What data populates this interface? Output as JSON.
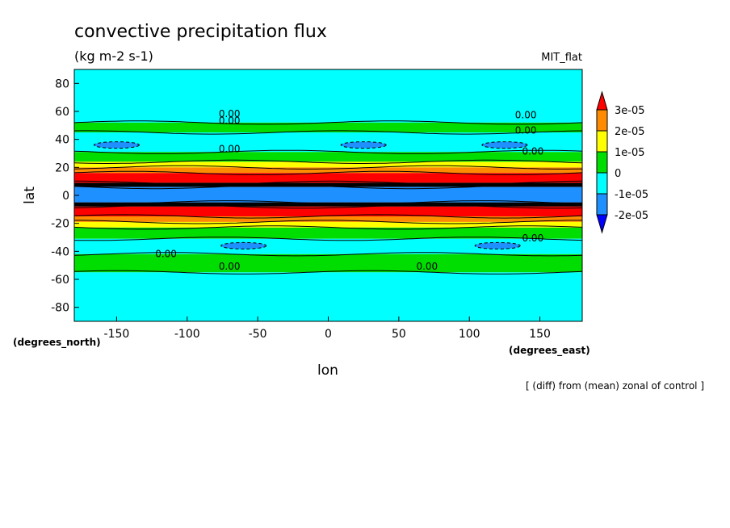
{
  "chart_data": {
    "type": "heatmap",
    "title": "convective precipitation flux",
    "subtitle": "(kg m-2 s-1)",
    "model_label": "MIT_flat",
    "xlabel": "lon",
    "ylabel": "lat",
    "x_unit_label": "(degrees_east)",
    "y_unit_label": "(degrees_north)",
    "footnote": "[ (diff) from (mean) zonal of control ]",
    "xlim": [
      -180,
      180
    ],
    "ylim": [
      -90,
      90
    ],
    "x_ticks": [
      -150,
      -100,
      -50,
      0,
      50,
      100,
      150
    ],
    "x_tick_labels": [
      "-150",
      "-100",
      "-50",
      "0",
      "50",
      "100",
      "150"
    ],
    "y_ticks": [
      80,
      60,
      40,
      20,
      0,
      -20,
      -40,
      -60,
      -80
    ],
    "y_tick_labels": [
      "80",
      "60",
      "40",
      "20",
      "0",
      "-20",
      "-40",
      "-60",
      "-80"
    ],
    "colorbar": {
      "labels": [
        "3e-05",
        "2e-05",
        "1e-05",
        "0",
        "-1e-05",
        "-2e-05"
      ],
      "colors": [
        "#ff0000",
        "#ff8c00",
        "#ffff00",
        "#00dd00",
        "#00ffff",
        "#1e90ff",
        "#0000ff"
      ],
      "extend": "both"
    },
    "bands": [
      {
        "lat_top": 90,
        "lat_bottom": 52,
        "value_color": "#00ffff"
      },
      {
        "lat_top": 52,
        "lat_bottom": 45,
        "value_color": "#00dd00"
      },
      {
        "lat_top": 45,
        "lat_bottom": 31,
        "value_color": "#00ffff"
      },
      {
        "lat_top": 31,
        "lat_bottom": 24,
        "value_color": "#00dd00"
      },
      {
        "lat_top": 24,
        "lat_bottom": 20,
        "value_color": "#ffff00"
      },
      {
        "lat_top": 20,
        "lat_bottom": 16,
        "value_color": "#ff8c00"
      },
      {
        "lat_top": 16,
        "lat_bottom": 9,
        "value_color": "#ff0000"
      },
      {
        "lat_top": 9,
        "lat_bottom": 6,
        "value_color": "#000000"
      },
      {
        "lat_top": 6,
        "lat_bottom": -5,
        "value_color": "#1e90ff"
      },
      {
        "lat_top": -5,
        "lat_bottom": -8,
        "value_color": "#000000"
      },
      {
        "lat_top": -8,
        "lat_bottom": -15,
        "value_color": "#ff0000"
      },
      {
        "lat_top": -15,
        "lat_bottom": -19,
        "value_color": "#ff8c00"
      },
      {
        "lat_top": -19,
        "lat_bottom": -23,
        "value_color": "#ffff00"
      },
      {
        "lat_top": -23,
        "lat_bottom": -31,
        "value_color": "#00dd00"
      },
      {
        "lat_top": -31,
        "lat_bottom": -42,
        "value_color": "#00ffff"
      },
      {
        "lat_top": -42,
        "lat_bottom": -55,
        "value_color": "#00dd00"
      },
      {
        "lat_top": -55,
        "lat_bottom": -90,
        "value_color": "#00ffff"
      }
    ],
    "negative_pockets": [
      {
        "lon": -150,
        "lat": 36
      },
      {
        "lon": 25,
        "lat": 36
      },
      {
        "lon": 125,
        "lat": 36
      },
      {
        "lon": -60,
        "lat": -36
      },
      {
        "lon": 120,
        "lat": -36
      }
    ],
    "contour_labels": [
      {
        "text": "0.00",
        "lon": -70,
        "lat": 56
      },
      {
        "text": "0.00",
        "lon": -70,
        "lat": 51
      },
      {
        "text": "0.00",
        "lon": 140,
        "lat": 55
      },
      {
        "text": "0.00",
        "lon": 140,
        "lat": 44
      },
      {
        "text": "0.00",
        "lon": -70,
        "lat": 31
      },
      {
        "text": "0.00",
        "lon": 145,
        "lat": 29
      },
      {
        "text": "0.00",
        "lon": -115,
        "lat": -44
      },
      {
        "text": "0.00",
        "lon": -70,
        "lat": -53
      },
      {
        "text": "0.00",
        "lon": 70,
        "lat": -53
      },
      {
        "text": "0.00",
        "lon": 145,
        "lat": -33
      }
    ]
  }
}
